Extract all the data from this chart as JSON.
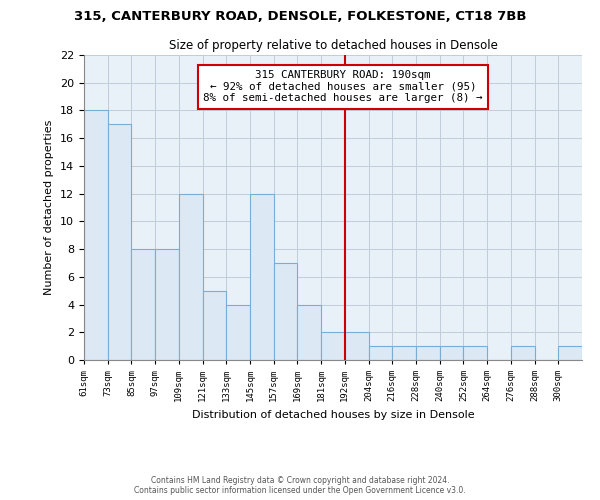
{
  "title1": "315, CANTERBURY ROAD, DENSOLE, FOLKESTONE, CT18 7BB",
  "title2": "Size of property relative to detached houses in Densole",
  "xlabel": "Distribution of detached houses by size in Densole",
  "ylabel": "Number of detached properties",
  "bin_labels": [
    "61sqm",
    "73sqm",
    "85sqm",
    "97sqm",
    "109sqm",
    "121sqm",
    "133sqm",
    "145sqm",
    "157sqm",
    "169sqm",
    "181sqm",
    "192sqm",
    "204sqm",
    "216sqm",
    "228sqm",
    "240sqm",
    "252sqm",
    "264sqm",
    "276sqm",
    "288sqm",
    "300sqm"
  ],
  "bar_values": [
    18,
    17,
    8,
    8,
    12,
    5,
    4,
    12,
    7,
    4,
    2,
    2,
    1,
    1,
    1,
    1,
    1,
    1,
    0,
    1,
    1
  ],
  "bar_color": "#dce9f5",
  "bar_edge_color": "#7aadd4",
  "ref_line_x_label": "192sqm",
  "ref_line_color": "#cc0000",
  "annotation_title": "315 CANTERBURY ROAD: 190sqm",
  "annotation_line1": "← 92% of detached houses are smaller (95)",
  "annotation_line2": "8% of semi-detached houses are larger (8) →",
  "footer1": "Contains HM Land Registry data © Crown copyright and database right 2024.",
  "footer2": "Contains public sector information licensed under the Open Government Licence v3.0.",
  "ylim": [
    0,
    22
  ],
  "yticks": [
    0,
    2,
    4,
    6,
    8,
    10,
    12,
    14,
    16,
    18,
    20,
    22
  ],
  "bg_color": "#ffffff",
  "plot_bg_color": "#e8f0f8",
  "grid_color": "#c0ccd8"
}
